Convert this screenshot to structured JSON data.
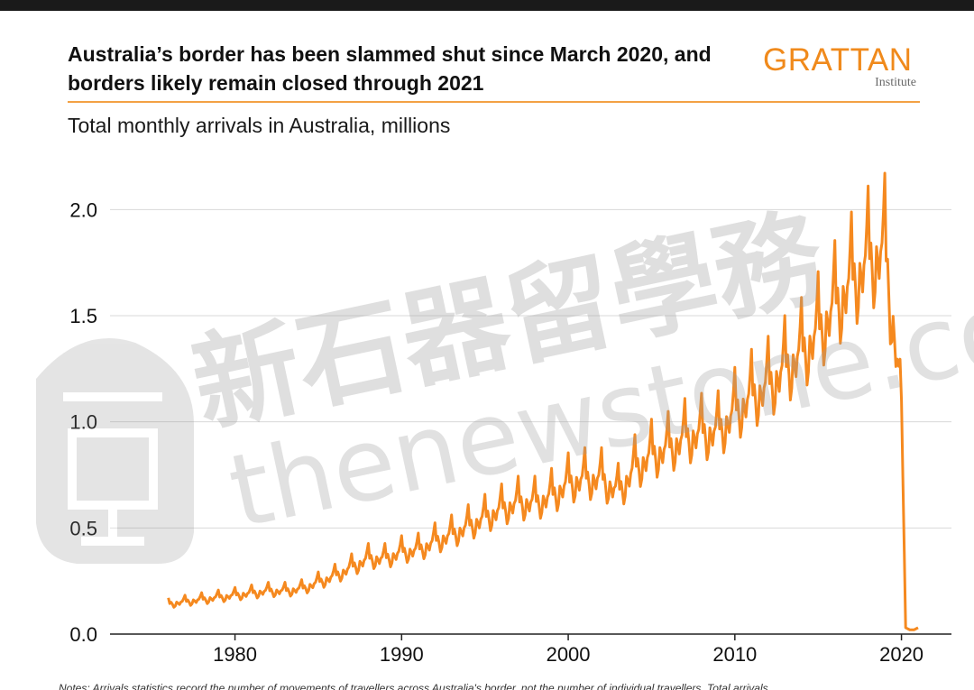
{
  "header": {
    "title": "Australia’s border has been slammed shut since March 2020, and borders likely remain closed through 2021",
    "subtitle": "Total monthly arrivals in Australia, millions",
    "logo_main": "GRATTAN",
    "logo_sub": "Institute"
  },
  "watermark": {
    "chinese": "新石器留學務",
    "url": "thenewstone.com"
  },
  "notes": "Notes: Arrivals statistics record the number of movements of travellers across Australia's border, not the number of individual travellers. Total arrivals",
  "colors": {
    "line": "#f5891f",
    "grid": "#d8d8d8",
    "accent": "#f08a1c"
  },
  "chart_data": {
    "type": "line",
    "title": "Total monthly arrivals in Australia, millions",
    "xlabel": "",
    "ylabel": "",
    "xlim": [
      1972.5,
      2023
    ],
    "ylim": [
      0,
      2.35
    ],
    "x_ticks": [
      "1980",
      "1990",
      "2000",
      "2010",
      "2020"
    ],
    "y_ticks": [
      "0.0",
      "0.5",
      "1.0",
      "1.5",
      "2.0"
    ],
    "grid": "horizontal",
    "legend": "none",
    "series": [
      {
        "x": [
          1976,
          1977,
          1978,
          1979,
          1980,
          1981,
          1982,
          1983,
          1984,
          1985,
          1986,
          1987,
          1988,
          1989,
          1990,
          1991,
          1992,
          1993,
          1994,
          1995,
          1996,
          1997,
          1998,
          1999,
          2000,
          2001,
          2002,
          2003,
          2004,
          2005,
          2006,
          2007,
          2008,
          2009,
          2010,
          2011,
          2012,
          2013,
          2014,
          2015,
          2016,
          2017,
          2018,
          2019,
          2020.0,
          2020.25,
          2020.5,
          2020.75,
          2021
        ],
        "values": [
          0.14,
          0.15,
          0.16,
          0.17,
          0.18,
          0.19,
          0.2,
          0.2,
          0.21,
          0.24,
          0.27,
          0.31,
          0.35,
          0.35,
          0.38,
          0.39,
          0.43,
          0.46,
          0.5,
          0.54,
          0.58,
          0.61,
          0.61,
          0.64,
          0.7,
          0.72,
          0.72,
          0.66,
          0.77,
          0.83,
          0.86,
          0.91,
          0.93,
          0.94,
          1.03,
          1.1,
          1.15,
          1.23,
          1.3,
          1.4,
          1.52,
          1.63,
          1.73,
          1.78,
          1.1,
          0.03,
          0.02,
          0.02,
          0.03
        ]
      }
    ]
  }
}
